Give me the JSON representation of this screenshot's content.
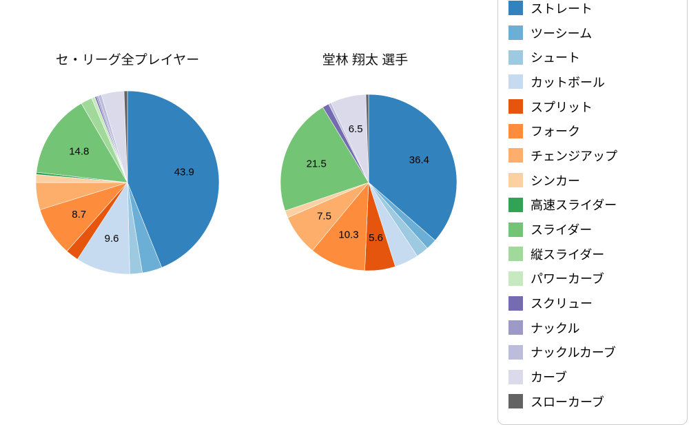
{
  "page": {
    "background": "#ffffff"
  },
  "chart_data": [
    {
      "type": "pie",
      "title": "セ・リーグ全プレイヤー",
      "start_angle": "top",
      "direction": "clockwise",
      "labels_shown_inside": true,
      "slices": [
        {
          "name": "ストレート",
          "value": 43.9,
          "label": "43.9"
        },
        {
          "name": "ツーシーム",
          "value": 3.5,
          "label": ""
        },
        {
          "name": "シュート",
          "value": 2.2,
          "label": ""
        },
        {
          "name": "カットボール",
          "value": 9.6,
          "label": "9.6"
        },
        {
          "name": "スプリット",
          "value": 2.3,
          "label": ""
        },
        {
          "name": "フォーク",
          "value": 8.7,
          "label": "8.7"
        },
        {
          "name": "チェンジアップ",
          "value": 4.8,
          "label": ""
        },
        {
          "name": "シンカー",
          "value": 1.4,
          "label": ""
        },
        {
          "name": "高速スライダー",
          "value": 0.4,
          "label": ""
        },
        {
          "name": "スライダー",
          "value": 14.8,
          "label": "14.8"
        },
        {
          "name": "縦スライダー",
          "value": 2.0,
          "label": ""
        },
        {
          "name": "パワーカーブ",
          "value": 0.6,
          "label": ""
        },
        {
          "name": "スクリュー",
          "value": 0.3,
          "label": ""
        },
        {
          "name": "ナックル",
          "value": 0.3,
          "label": ""
        },
        {
          "name": "ナックルカーブ",
          "value": 0.6,
          "label": ""
        },
        {
          "name": "カーブ",
          "value": 4.0,
          "label": ""
        },
        {
          "name": "スローカーブ",
          "value": 0.6,
          "label": ""
        }
      ]
    },
    {
      "type": "pie",
      "title": "堂林 翔太 選手",
      "start_angle": "top",
      "direction": "clockwise",
      "labels_shown_inside": true,
      "slices": [
        {
          "name": "ストレート",
          "value": 36.4,
          "label": "36.4"
        },
        {
          "name": "ツーシーム",
          "value": 2.0,
          "label": ""
        },
        {
          "name": "シュート",
          "value": 2.3,
          "label": ""
        },
        {
          "name": "カットボール",
          "value": 4.4,
          "label": ""
        },
        {
          "name": "スプリット",
          "value": 5.6,
          "label": "5.6"
        },
        {
          "name": "フォーク",
          "value": 10.3,
          "label": "10.3"
        },
        {
          "name": "チェンジアップ",
          "value": 7.5,
          "label": "7.5"
        },
        {
          "name": "シンカー",
          "value": 1.3,
          "label": ""
        },
        {
          "name": "高速スライダー",
          "value": 0,
          "label": ""
        },
        {
          "name": "スライダー",
          "value": 21.5,
          "label": "21.5"
        },
        {
          "name": "縦スライダー",
          "value": 0,
          "label": ""
        },
        {
          "name": "パワーカーブ",
          "value": 0,
          "label": ""
        },
        {
          "name": "スクリュー",
          "value": 1.2,
          "label": ""
        },
        {
          "name": "ナックル",
          "value": 0,
          "label": ""
        },
        {
          "name": "ナックルカーブ",
          "value": 0.5,
          "label": ""
        },
        {
          "name": "カーブ",
          "value": 6.5,
          "label": "6.5"
        },
        {
          "name": "スローカーブ",
          "value": 0.5,
          "label": ""
        }
      ]
    }
  ],
  "legend": {
    "items": [
      {
        "label": "ストレート",
        "color": "#3182bd"
      },
      {
        "label": "ツーシーム",
        "color": "#6baed6"
      },
      {
        "label": "シュート",
        "color": "#9ecae1"
      },
      {
        "label": "カットボール",
        "color": "#c6dbef"
      },
      {
        "label": "スプリット",
        "color": "#e6550d"
      },
      {
        "label": "フォーク",
        "color": "#fd8d3c"
      },
      {
        "label": "チェンジアップ",
        "color": "#fdae6b"
      },
      {
        "label": "シンカー",
        "color": "#fdd0a2"
      },
      {
        "label": "高速スライダー",
        "color": "#31a354"
      },
      {
        "label": "スライダー",
        "color": "#74c476"
      },
      {
        "label": "縦スライダー",
        "color": "#a1d99b"
      },
      {
        "label": "パワーカーブ",
        "color": "#c7e9c0"
      },
      {
        "label": "スクリュー",
        "color": "#756bb1"
      },
      {
        "label": "ナックル",
        "color": "#9e9ac8"
      },
      {
        "label": "ナックルカーブ",
        "color": "#bcbddc"
      },
      {
        "label": "カーブ",
        "color": "#dadaeb"
      },
      {
        "label": "スローカーブ",
        "color": "#636363"
      }
    ]
  }
}
